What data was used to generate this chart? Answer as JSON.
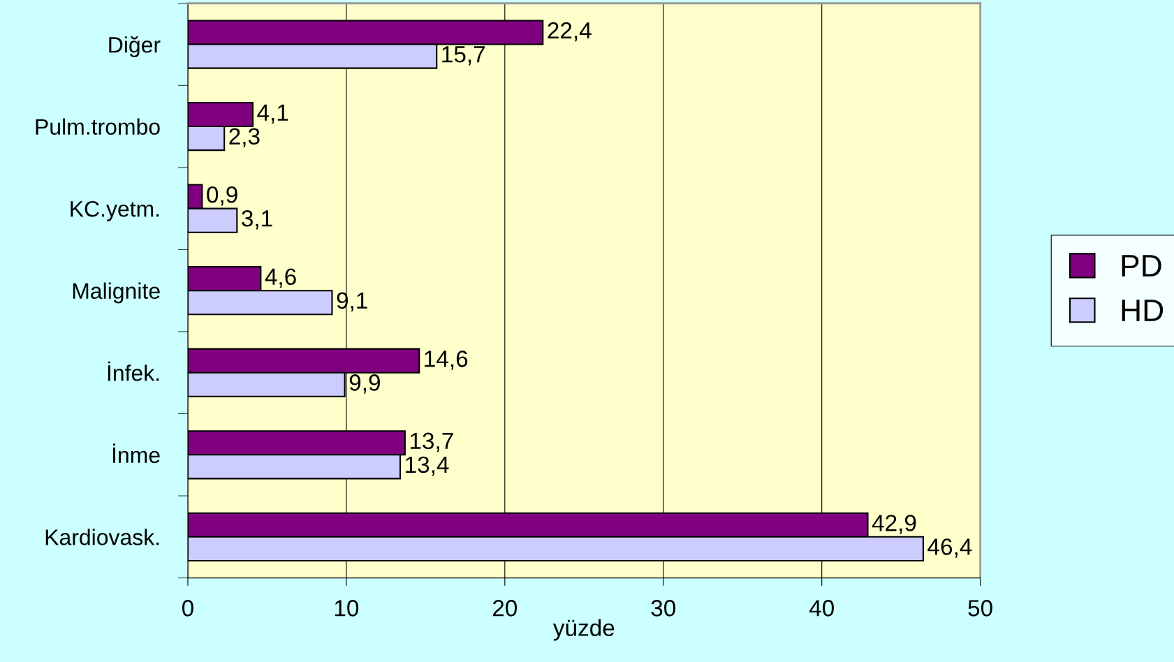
{
  "chart_data": {
    "type": "bar",
    "orientation": "horizontal",
    "xlabel": "yüzde",
    "categories": [
      "Diğer",
      "Pulm.trombo",
      "KC.yetm.",
      "Malignite",
      "İnfek.",
      "İnme",
      "Kardiovask."
    ],
    "series": [
      {
        "name": "PD",
        "color": "#800080",
        "values": [
          22.4,
          4.1,
          0.9,
          4.6,
          14.6,
          13.7,
          42.9
        ],
        "value_labels": [
          "22,4",
          "4,1",
          "0,9",
          "4,6",
          "14,6",
          "13,7",
          "42,9"
        ]
      },
      {
        "name": "HD",
        "color": "#ccccff",
        "values": [
          15.7,
          2.3,
          3.1,
          9.1,
          9.9,
          13.4,
          46.4
        ],
        "value_labels": [
          "15,7",
          "2,3",
          "3,1",
          "9,1",
          "9,9",
          "13,4",
          "46,4"
        ]
      }
    ],
    "xlim": [
      0,
      50
    ],
    "xticks": [
      0,
      10,
      20,
      30,
      40,
      50
    ],
    "grid": "x",
    "legend": "right"
  }
}
